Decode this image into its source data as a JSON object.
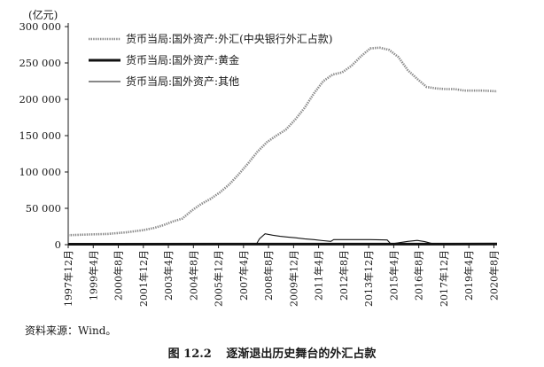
{
  "figure": {
    "unit_label": "(亿元)",
    "source": "资料来源：Wind。",
    "caption_number": "图 12.2",
    "caption_title": "逐渐退出历史舞台的外汇占款"
  },
  "chart_data": {
    "type": "line",
    "ylabel": "(亿元)",
    "ylim": [
      0,
      300000
    ],
    "y_ticks": [
      "0",
      "50 000",
      "100 000",
      "150 000",
      "200 000",
      "250 000",
      "300 000"
    ],
    "y_tick_values": [
      0,
      50000,
      100000,
      150000,
      200000,
      250000,
      300000
    ],
    "x_tick_labels": [
      "1997年12月",
      "1999年4月",
      "2000年8月",
      "2001年12月",
      "2003年4月",
      "2004年8月",
      "2005年12月",
      "2007年4月",
      "2008年8月",
      "2009年12月",
      "2011年4月",
      "2012年8月",
      "2013年12月",
      "2015年4月",
      "2016年8月",
      "2017年12月",
      "2019年4月",
      "2020年8月"
    ],
    "x_tick_values": [
      1997.917,
      1999.25,
      2000.583,
      2001.917,
      2003.25,
      2004.583,
      2005.917,
      2007.25,
      2008.583,
      2009.917,
      2011.25,
      2012.583,
      2013.917,
      2015.25,
      2016.583,
      2017.917,
      2019.25,
      2020.583
    ],
    "xlim": [
      1997.917,
      2020.75
    ],
    "grid": false,
    "legend_position": "top-left",
    "series": [
      {
        "name": "货币当局:国外资产:外汇(中央银行外汇占款)",
        "style": "dotted",
        "x": [
          1997.917,
          1999.0,
          2000.0,
          2001.0,
          2001.917,
          2002.5,
          2003.0,
          2003.5,
          2004.0,
          2004.5,
          2005.0,
          2005.5,
          2006.0,
          2006.5,
          2007.0,
          2007.5,
          2008.0,
          2008.5,
          2009.0,
          2009.5,
          2010.0,
          2010.5,
          2011.0,
          2011.5,
          2012.0,
          2012.5,
          2013.0,
          2013.5,
          2014.0,
          2014.5,
          2015.0,
          2015.5,
          2016.0,
          2016.5,
          2017.0,
          2017.5,
          2018.0,
          2018.5,
          2019.0,
          2019.5,
          2020.0,
          2020.75
        ],
        "y": [
          13000,
          14000,
          14800,
          17000,
          20000,
          23000,
          27000,
          32000,
          36000,
          47000,
          56000,
          63000,
          72000,
          83000,
          97000,
          112000,
          128000,
          141000,
          150000,
          158000,
          172000,
          188000,
          208000,
          225000,
          234000,
          237000,
          246000,
          259000,
          270000,
          271000,
          268000,
          258000,
          240000,
          228000,
          217000,
          215000,
          214000,
          214000,
          212000,
          212000,
          212000,
          211000
        ]
      },
      {
        "name": "货币当局:国外资产:黄金",
        "style": "thick",
        "x": [
          1997.917,
          2020.75
        ],
        "y": [
          600,
          800
        ]
      },
      {
        "name": "货币当局:国外资产:其他",
        "style": "thin",
        "x": [
          1997.917,
          2007.917,
          2008.1,
          2008.4,
          2008.8,
          2009.2,
          2009.6,
          2010.0,
          2010.5,
          2011.0,
          2011.5,
          2011.9,
          2012.05,
          2013.0,
          2014.0,
          2014.9,
          2015.1,
          2016.0,
          2016.5,
          2016.9,
          2017.3,
          2018.0,
          2020.75
        ],
        "y": [
          0,
          0,
          8000,
          15000,
          13000,
          11500,
          10500,
          9500,
          8000,
          7000,
          5500,
          4500,
          7000,
          7000,
          7000,
          6500,
          1000,
          4500,
          5800,
          4200,
          1500,
          800,
          800
        ]
      }
    ]
  }
}
